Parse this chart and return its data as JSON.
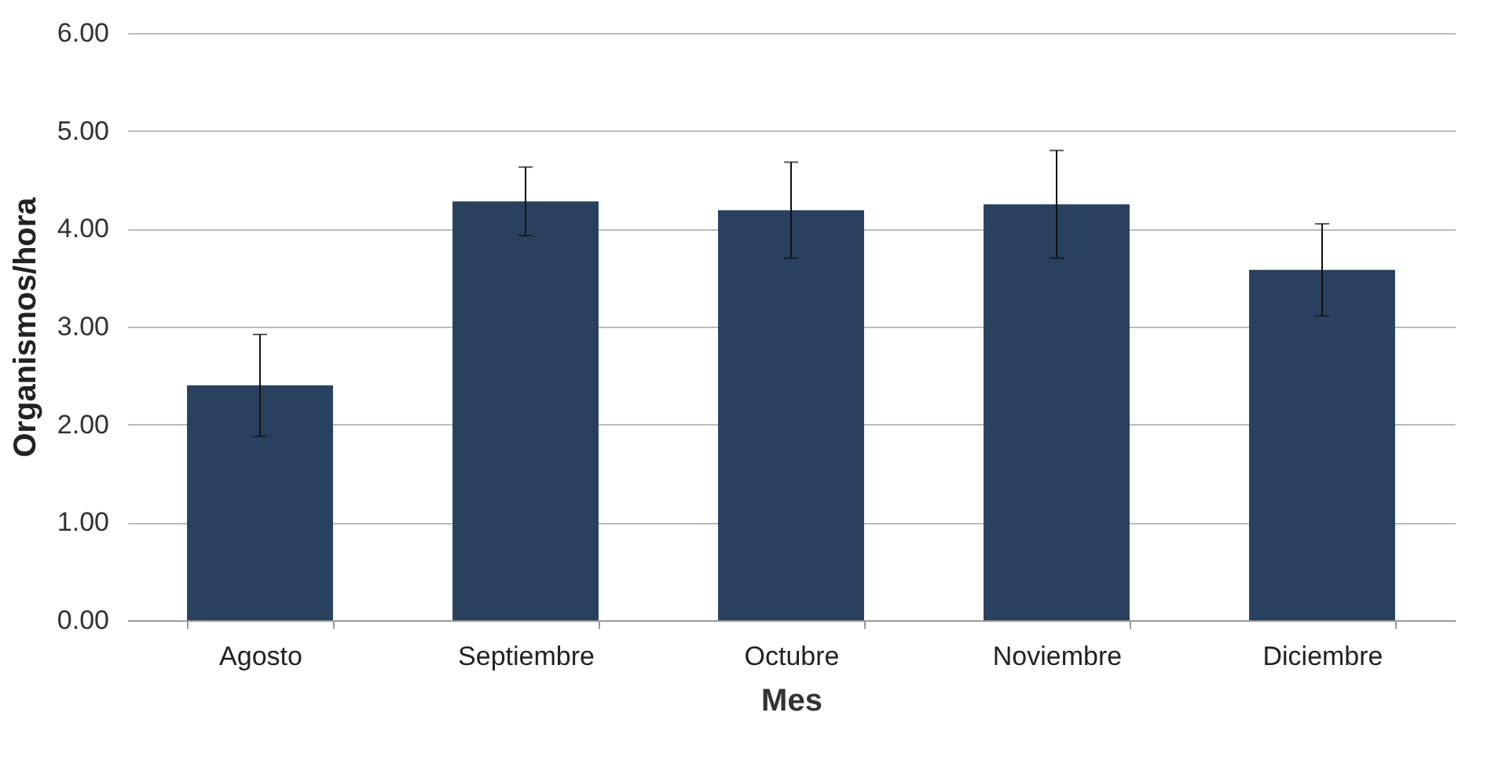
{
  "chart_data": {
    "type": "bar",
    "xlabel": "Mes",
    "ylabel": "Organismos/hora",
    "categories": [
      "Agosto",
      "Septiembre",
      "Octubre",
      "Noviembre",
      "Diciembre"
    ],
    "values": [
      2.4,
      4.28,
      4.19,
      4.25,
      3.58
    ],
    "errors": [
      0.52,
      0.35,
      0.49,
      0.55,
      0.47
    ],
    "color": "#29415f",
    "ylim": [
      0,
      6
    ],
    "yticks": [
      {
        "value": 0,
        "label": "0.00"
      },
      {
        "value": 1,
        "label": "1.00"
      },
      {
        "value": 2,
        "label": "2.00"
      },
      {
        "value": 3,
        "label": "3.00"
      },
      {
        "value": 4,
        "label": "4.00"
      },
      {
        "value": 5,
        "label": "5.00"
      },
      {
        "value": 6,
        "label": "6.00"
      }
    ],
    "grid": "y"
  }
}
